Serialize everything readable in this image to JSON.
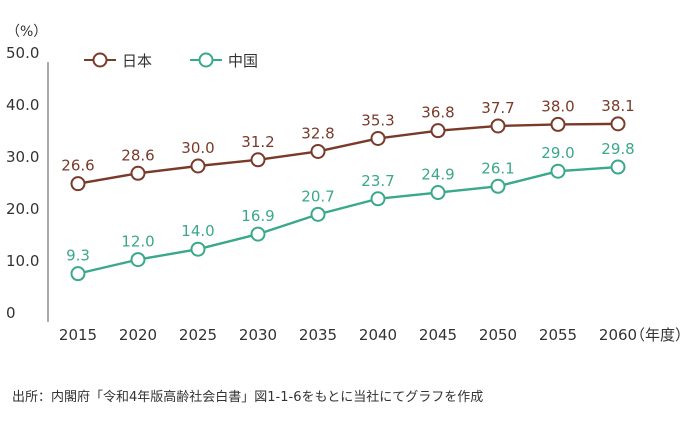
{
  "chart_data": {
    "type": "line",
    "y_unit": "（%）",
    "x_unit": "（年度）",
    "categories": [
      "2015",
      "2020",
      "2025",
      "2030",
      "2035",
      "2040",
      "2045",
      "2050",
      "2055",
      "2060"
    ],
    "y_ticks": [
      "50.0",
      "40.0",
      "30.0",
      "20.0",
      "10.0",
      "0"
    ],
    "ylim": [
      0,
      50
    ],
    "grid": false,
    "legend_position": "top-left",
    "series": [
      {
        "name": "日本",
        "color": "#7a3a2a",
        "values": [
          26.6,
          28.6,
          30.0,
          31.2,
          32.8,
          35.3,
          36.8,
          37.7,
          38.0,
          38.1
        ],
        "labels": [
          "26.6",
          "28.6",
          "30.0",
          "31.2",
          "32.8",
          "35.3",
          "36.8",
          "37.7",
          "38.0",
          "38.1"
        ]
      },
      {
        "name": "中国",
        "color": "#3aa88a",
        "values": [
          9.3,
          12.0,
          14.0,
          16.9,
          20.7,
          23.7,
          24.9,
          26.1,
          29.0,
          29.8
        ],
        "labels": [
          "9.3",
          "12.0",
          "14.0",
          "16.9",
          "20.7",
          "23.7",
          "24.9",
          "26.1",
          "29.0",
          "29.8"
        ]
      }
    ]
  },
  "source_text": "出所：内閣府「令和4年版高齢社会白書」図1-1-6をもとに当社にてグラフを作成"
}
